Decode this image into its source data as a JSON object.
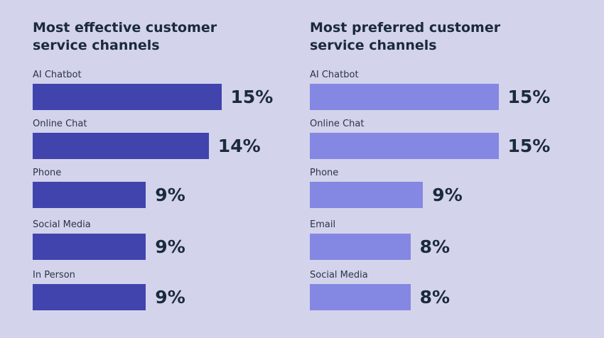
{
  "colors": {
    "background": "#d3d3ec",
    "left_bar": "#4144ad",
    "right_bar": "#8488e2",
    "text": "#1b2a3c"
  },
  "chart_data": [
    {
      "type": "bar",
      "orientation": "horizontal",
      "title": "Most effective customer\nservice channels",
      "categories": [
        "AI Chatbot",
        "Online Chat",
        "Phone",
        "Social Media",
        "In Person"
      ],
      "values": [
        15,
        14,
        9,
        9,
        9
      ],
      "value_labels": [
        "15%",
        "14%",
        "9%",
        "9%",
        "9%"
      ],
      "unit": "%",
      "grid": false,
      "legend": "none"
    },
    {
      "type": "bar",
      "orientation": "horizontal",
      "title": "Most preferred customer\nservice channels",
      "categories": [
        "AI Chatbot",
        "Online Chat",
        "Phone",
        "Email",
        "Social Media"
      ],
      "values": [
        15,
        15,
        9,
        8,
        8
      ],
      "value_labels": [
        "15%",
        "15%",
        "9%",
        "8%",
        "8%"
      ],
      "unit": "%",
      "grid": false,
      "legend": "none"
    }
  ]
}
